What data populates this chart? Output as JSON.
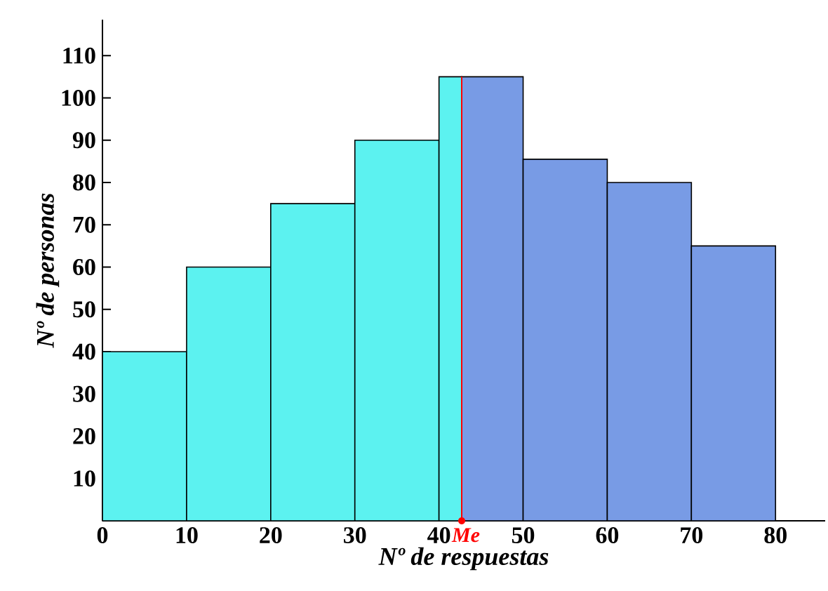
{
  "chart_data": {
    "type": "histogram",
    "xlabel": "Nº de respuestas",
    "ylabel": "Nº de personas",
    "bins": [
      0,
      10,
      20,
      30,
      40,
      42.7,
      50,
      60,
      70,
      80
    ],
    "values": [
      40,
      60,
      75,
      90,
      105,
      105,
      85.5,
      80,
      65
    ],
    "colors": [
      "#5cf2f0",
      "#5cf2f0",
      "#5cf2f0",
      "#5cf2f0",
      "#5cf2f0",
      "#789be5",
      "#789be5",
      "#789be5",
      "#789be5"
    ],
    "xlim": [
      0,
      85.9
    ],
    "ylim": [
      0,
      118.5
    ],
    "xticks": [
      0,
      10,
      20,
      30,
      40,
      50,
      60,
      70,
      80
    ],
    "yticks": [
      10,
      20,
      30,
      40,
      50,
      60,
      70,
      80,
      90,
      100,
      110
    ],
    "ref_lines": [
      {
        "axis": "x",
        "value": 42.7,
        "label": "Me",
        "color": "#ff0000"
      }
    ]
  }
}
